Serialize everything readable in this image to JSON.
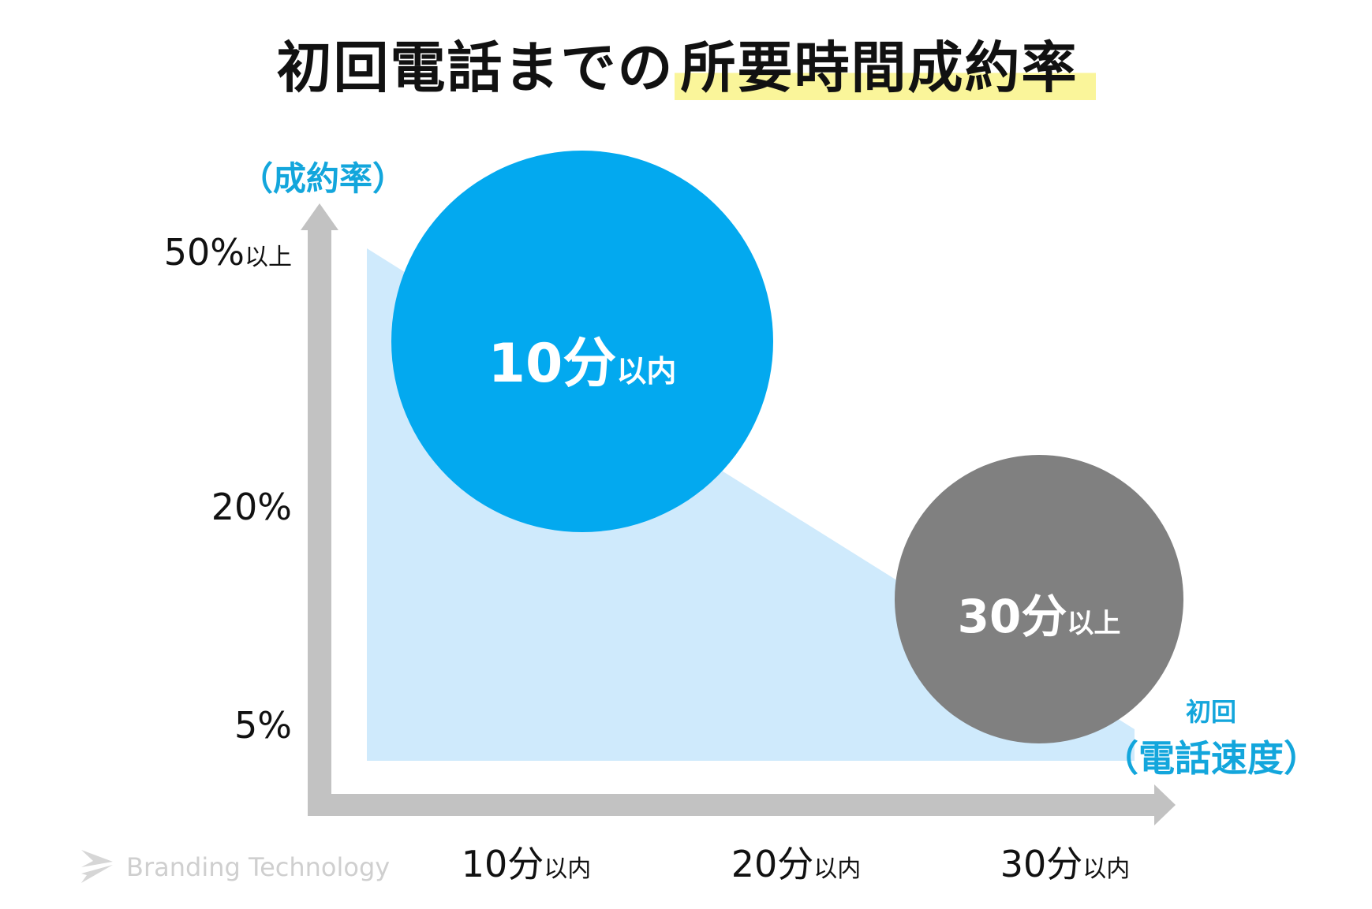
{
  "title": {
    "plain": "初回電話までの",
    "highlight": "所要時間成約率"
  },
  "colors": {
    "accent": "#03a9ef",
    "area": "#cfeafc",
    "axis": "#c2c2c2",
    "grey_bubble": "#808080",
    "highlight": "#faf59a",
    "label_blue": "#13a6dc"
  },
  "chart_data": {
    "type": "area",
    "ylabel": "（成約率）",
    "xlabel_line1": "初回",
    "xlabel_line2": "（電話速度）",
    "y_ticks": [
      {
        "main": "50%",
        "suffix": "以上"
      },
      {
        "main": "20%",
        "suffix": ""
      },
      {
        "main": "5%",
        "suffix": ""
      }
    ],
    "x_ticks": [
      {
        "main": "10分",
        "suffix": "以内"
      },
      {
        "main": "20分",
        "suffix": "以内"
      },
      {
        "main": "30分",
        "suffix": "以内"
      }
    ],
    "bubbles": [
      {
        "main": "10分",
        "suffix": "以内",
        "color": "#03a9ef"
      },
      {
        "main": "30分",
        "suffix": "以上",
        "color": "#808080"
      }
    ],
    "grid": false
  },
  "brand": {
    "icon": "paper-plane-icon",
    "text": "Branding Technology"
  }
}
